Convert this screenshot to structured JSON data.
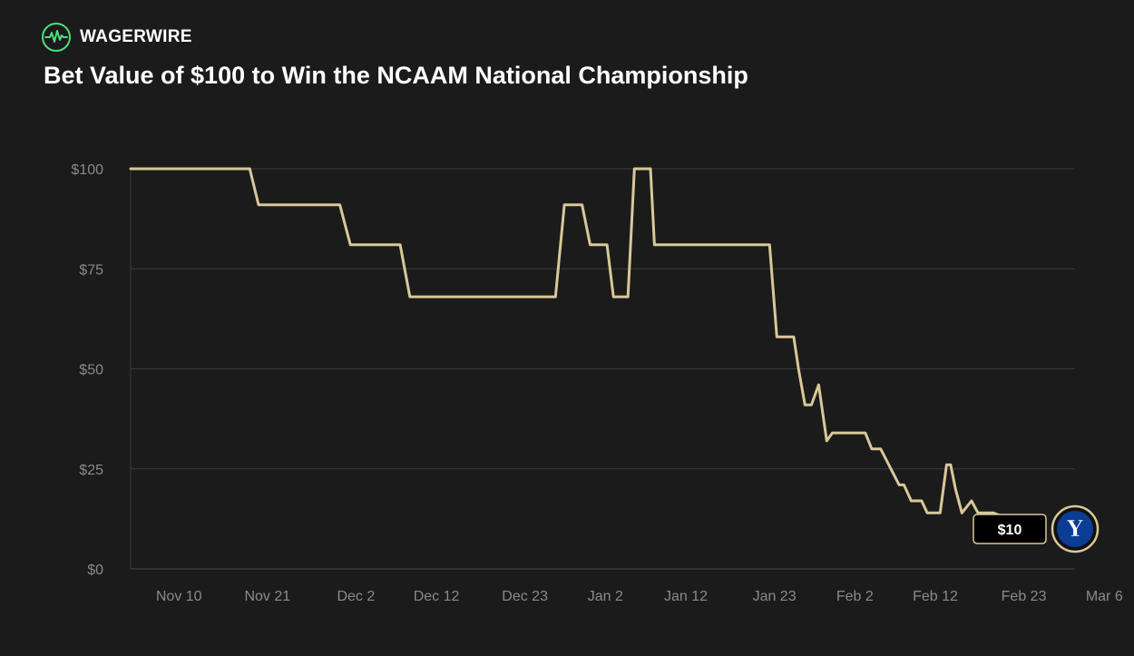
{
  "brand": {
    "name": "WAGERWIRE",
    "logo_icon": "pulse-circle-icon",
    "accent": "#4ade80"
  },
  "title": "Bet Value of $100 to Win the NCAAM National Championship",
  "colors": {
    "background": "#1b1b1b",
    "line": "#d8c89a",
    "grid": "#3a3a3a",
    "tick": "#8a8a8a",
    "team_badge": "#0c3d94"
  },
  "team": {
    "icon": "byu-y-logo-icon",
    "logo_text": "Y"
  },
  "end_label": "$10",
  "chart_data": {
    "type": "line",
    "title": "Bet Value of $100 to Win the NCAAM National Championship",
    "xlabel": "",
    "ylabel": "",
    "ylim": [
      0,
      100
    ],
    "xlim": [
      -4,
      112
    ],
    "y_ticks": [
      0,
      25,
      50,
      75,
      100
    ],
    "y_tick_labels": [
      "$0",
      "$25",
      "$50",
      "$75",
      "$100"
    ],
    "x_ticks": [
      6,
      17,
      28,
      38,
      49,
      59,
      69,
      80,
      90,
      100,
      111,
      121
    ],
    "x_tick_labels": [
      "Nov 10",
      "Nov 21",
      "Dec 2",
      "Dec 12",
      "Dec 23",
      "Jan 2",
      "Jan 12",
      "Jan 23",
      "Feb 2",
      "Feb 12",
      "Feb 23",
      "Mar 6"
    ],
    "grid": true,
    "series": [
      {
        "name": "BYU",
        "x": [
          0,
          14.8,
          15.9,
          26,
          27.3,
          33.5,
          34.7,
          52.8,
          53.9,
          56.1,
          57.1,
          59.2,
          60,
          61.8,
          62.6,
          64.6,
          65.1,
          66,
          67.6,
          68.4,
          79.4,
          80.3,
          82.4,
          83,
          83.8,
          84.6,
          85.5,
          86.5,
          87.2,
          88.1,
          89.1,
          91.3,
          92.1,
          93.2,
          95.5,
          96.1,
          97,
          98.3,
          99,
          99.8,
          100.6,
          101.4,
          101.9,
          102.5,
          103.3,
          104.5,
          105.3,
          106.1,
          107.2,
          108.5,
          109.1
        ],
        "y": [
          100,
          100,
          91,
          91,
          81,
          81,
          68,
          68,
          91,
          91,
          81,
          81,
          68,
          68,
          100,
          100,
          81,
          81,
          81,
          81,
          81,
          58,
          58,
          50,
          41,
          41,
          46,
          32,
          34,
          34,
          34,
          34,
          30,
          30,
          21,
          21,
          17,
          17,
          14,
          14,
          14,
          26,
          26,
          20,
          14,
          17,
          14,
          14,
          14,
          13,
          10
        ]
      }
    ],
    "end_value": 10
  }
}
